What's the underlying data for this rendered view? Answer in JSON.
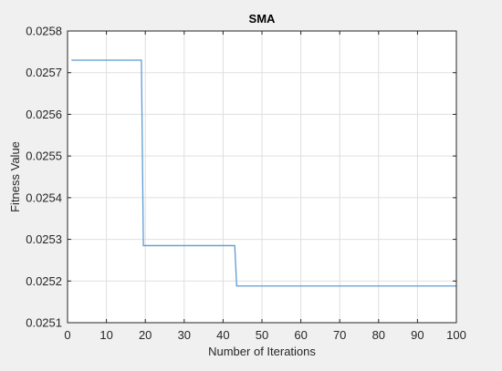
{
  "chart_data": {
    "type": "line",
    "title": "SMA",
    "xlabel": "Number of Iterations",
    "ylabel": "Fitness Value",
    "xlim": [
      0,
      100
    ],
    "ylim": [
      0.0251,
      0.0258
    ],
    "xticks": [
      0,
      10,
      20,
      30,
      40,
      50,
      60,
      70,
      80,
      90,
      100
    ],
    "xtick_labels": [
      "0",
      "10",
      "20",
      "30",
      "40",
      "50",
      "60",
      "70",
      "80",
      "90",
      "100"
    ],
    "yticks": [
      0.0251,
      0.0252,
      0.0253,
      0.0254,
      0.0255,
      0.0256,
      0.0257,
      0.0258
    ],
    "ytick_labels": [
      "0.0251",
      "0.0252",
      "0.0253",
      "0.0254",
      "0.0255",
      "0.0256",
      "0.0257",
      "0.0258"
    ],
    "grid": true,
    "legend": "none",
    "series": [
      {
        "color": "#5b9bd5",
        "x": [
          1,
          19,
          19.5,
          43,
          43.5,
          100
        ],
        "y": [
          0.02573,
          0.02573,
          0.025285,
          0.025285,
          0.025188,
          0.025188
        ]
      }
    ]
  }
}
